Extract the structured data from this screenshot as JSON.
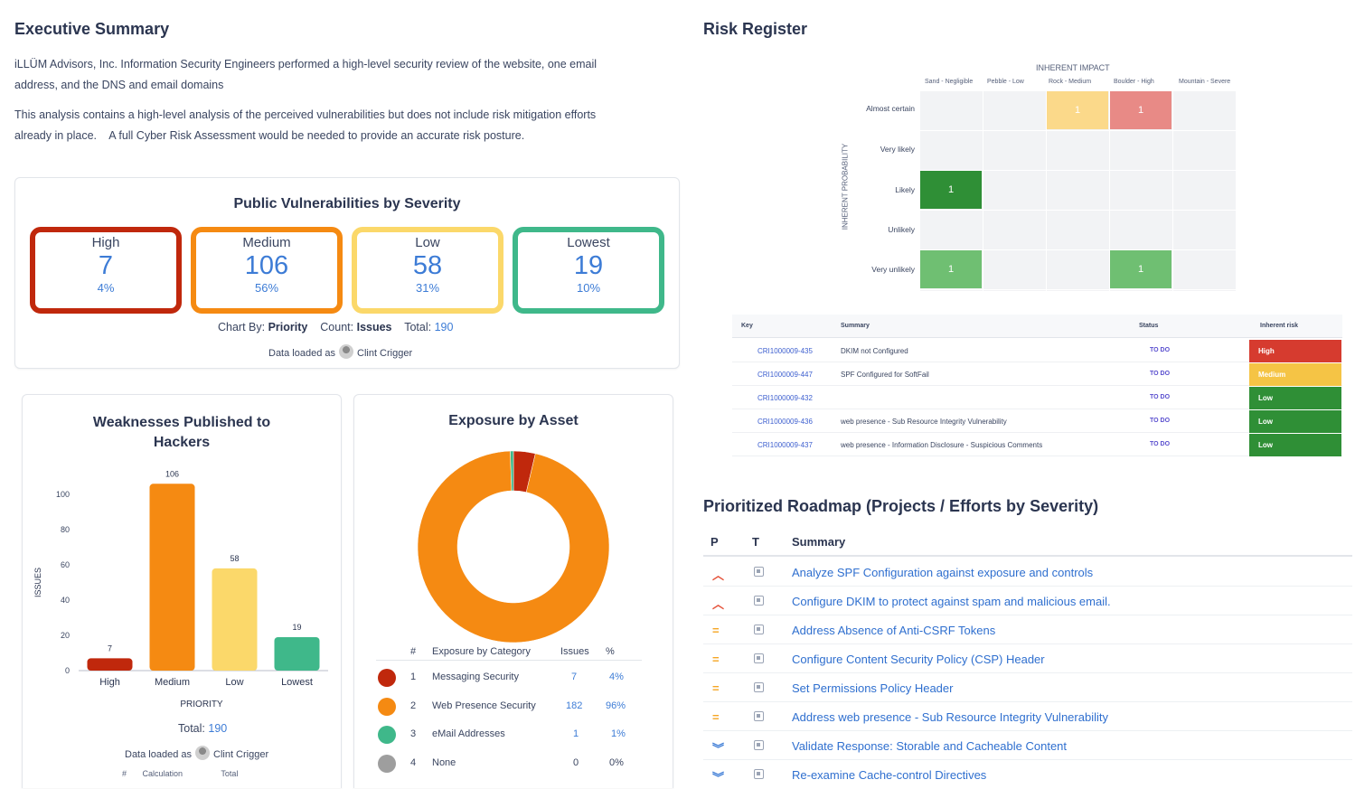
{
  "executive": {
    "title": "Executive Summary",
    "para1_line1": "iLLÜM Advisors, Inc. Information Security Engineers performed a high-level security review of the website, one email",
    "para1_line2": "address, and the DNS and email domains",
    "para2_line1": "This analysis contains a high-level analysis of the perceived vulnerabilities but does not include risk mitigation efforts",
    "para2_line2": "already in place.    A full Cyber Risk Assessment would be needed to provide an accurate risk posture."
  },
  "vuln": {
    "title": "Public Vulnerabilities by Severity",
    "cards": [
      {
        "label": "High",
        "value": "7",
        "pct": "4%",
        "color": "#c0280c"
      },
      {
        "label": "Medium",
        "value": "106",
        "pct": "56%",
        "color": "#f58a12"
      },
      {
        "label": "Low",
        "value": "58",
        "pct": "31%",
        "color": "#fbd86a"
      },
      {
        "label": "Lowest",
        "value": "19",
        "pct": "10%",
        "color": "#3fb88a"
      }
    ],
    "chart_by_label": "Chart By:",
    "chart_by_value": "Priority",
    "count_label": "Count:",
    "count_value": "Issues",
    "total_label": "Total:",
    "total_value": "190",
    "loaded_label": "Data loaded as",
    "loaded_user": "Clint Crigger"
  },
  "weak": {
    "title_line1": "Weaknesses Published to",
    "title_line2": "Hackers",
    "ylabel": "ISSUES",
    "xlabel": "PRIORITY",
    "total_label": "Total:",
    "total_value": "190",
    "loaded_label": "Data loaded as",
    "loaded_user": "Clint Crigger",
    "foot_hash": "#",
    "foot_calc": "Calculation",
    "foot_total": "Total"
  },
  "chart_data": [
    {
      "type": "bar",
      "title": "Weaknesses Published to Hackers",
      "xlabel": "PRIORITY",
      "ylabel": "ISSUES",
      "categories": [
        "High",
        "Medium",
        "Low",
        "Lowest"
      ],
      "values": [
        7,
        106,
        58,
        19
      ],
      "colors": [
        "#c0280c",
        "#f58a12",
        "#fbd86a",
        "#3fb88a"
      ],
      "ylim": [
        0,
        100
      ],
      "yticks": [
        0,
        20,
        40,
        60,
        80,
        100
      ],
      "grid": false
    },
    {
      "type": "pie",
      "title": "Exposure by Asset",
      "categories": [
        "Messaging Security",
        "Web Presence Security",
        "eMail Addresses",
        "None"
      ],
      "values": [
        7,
        182,
        1,
        0
      ],
      "colors": [
        "#c0280c",
        "#f58a12",
        "#3fb88a",
        "#9e9e9e"
      ]
    }
  ],
  "exposure": {
    "title": "Exposure by Asset",
    "headers": {
      "num": "#",
      "cat": "Exposure by Category",
      "issues": "Issues",
      "pct": "%"
    },
    "rows": [
      {
        "num": "1",
        "cat": "Messaging Security",
        "issues": "7",
        "pct": "4%",
        "color": "#c0280c"
      },
      {
        "num": "2",
        "cat": "Web Presence Security",
        "issues": "182",
        "pct": "96%",
        "color": "#f58a12"
      },
      {
        "num": "3",
        "cat": "eMail Addresses",
        "issues": "1",
        "pct": "1%",
        "color": "#3fb88a"
      },
      {
        "num": "4",
        "cat": "None",
        "issues": "0",
        "pct": "0%",
        "color": "#9e9e9e"
      }
    ]
  },
  "risk": {
    "title": "Risk Register",
    "impact_title": "INHERENT IMPACT",
    "prob_title": "INHERENT PROBABILITY",
    "impact_cols": [
      "Sand - Negligible",
      "Pebble - Low",
      "Rock - Medium",
      "Boulder - High",
      "Mountain - Severe"
    ],
    "prob_rows": [
      "Almost certain",
      "Very likely",
      "Likely",
      "Unlikely",
      "Very unlikely"
    ],
    "cells": [
      {
        "row": 0,
        "col": 2,
        "value": "1",
        "color": "#fbd98a"
      },
      {
        "row": 0,
        "col": 3,
        "value": "1",
        "color": "#e88a86"
      },
      {
        "row": 2,
        "col": 0,
        "value": "1",
        "color": "#2f8f36"
      },
      {
        "row": 4,
        "col": 0,
        "value": "1",
        "color": "#6fbf72"
      },
      {
        "row": 4,
        "col": 3,
        "value": "1",
        "color": "#6fbf72"
      }
    ],
    "table_headers": {
      "key": "Key",
      "summary": "Summary",
      "status": "Status",
      "risk": "Inherent risk"
    },
    "table_rows": [
      {
        "key": "CRI1000009-435",
        "summary": "DKIM not Configured",
        "status": "TO DO",
        "risk": "High",
        "color": "#d63b2f"
      },
      {
        "key": "CRI1000009-447",
        "summary": "SPF Configured for SoftFail",
        "status": "TO DO",
        "risk": "Medium",
        "color": "#f5c445"
      },
      {
        "key": "CRI1000009-432",
        "summary": "",
        "status": "TO DO",
        "risk": "Low",
        "color": "#2f8f36"
      },
      {
        "key": "CRI1000009-436",
        "summary": "web presence - Sub Resource Integrity Vulnerability",
        "status": "TO DO",
        "risk": "Low",
        "color": "#2f8f36"
      },
      {
        "key": "CRI1000009-437",
        "summary": "web presence - Information Disclosure - Suspicious Comments",
        "status": "TO DO",
        "risk": "Low",
        "color": "#2f8f36"
      }
    ]
  },
  "roadmap": {
    "title": "Prioritized Roadmap (Projects / Efforts by Severity)",
    "headers": {
      "p": "P",
      "t": "T",
      "summary": "Summary"
    },
    "rows": [
      {
        "priority": "high",
        "glyph": "︿",
        "color": "#e5533b",
        "summary": "Analyze SPF Configuration against exposure and controls"
      },
      {
        "priority": "high",
        "glyph": "︿",
        "color": "#e5533b",
        "summary": "Configure DKIM to protect against spam and malicious email."
      },
      {
        "priority": "medium",
        "glyph": "=",
        "color": "#f5a623",
        "summary": "Address Absence of Anti-CSRF Tokens"
      },
      {
        "priority": "medium",
        "glyph": "=",
        "color": "#f5a623",
        "summary": "Configure Content Security Policy (CSP) Header"
      },
      {
        "priority": "medium",
        "glyph": "=",
        "color": "#f5a623",
        "summary": "Set Permissions Policy Header"
      },
      {
        "priority": "medium",
        "glyph": "=",
        "color": "#f5a623",
        "summary": "Address web presence - Sub Resource Integrity Vulnerability"
      },
      {
        "priority": "low",
        "glyph": "︾",
        "color": "#3d7cd6",
        "summary": "Validate Response: Storable and Cacheable Content"
      },
      {
        "priority": "low",
        "glyph": "︾",
        "color": "#3d7cd6",
        "summary": "Re-examine Cache-control Directives"
      }
    ]
  }
}
